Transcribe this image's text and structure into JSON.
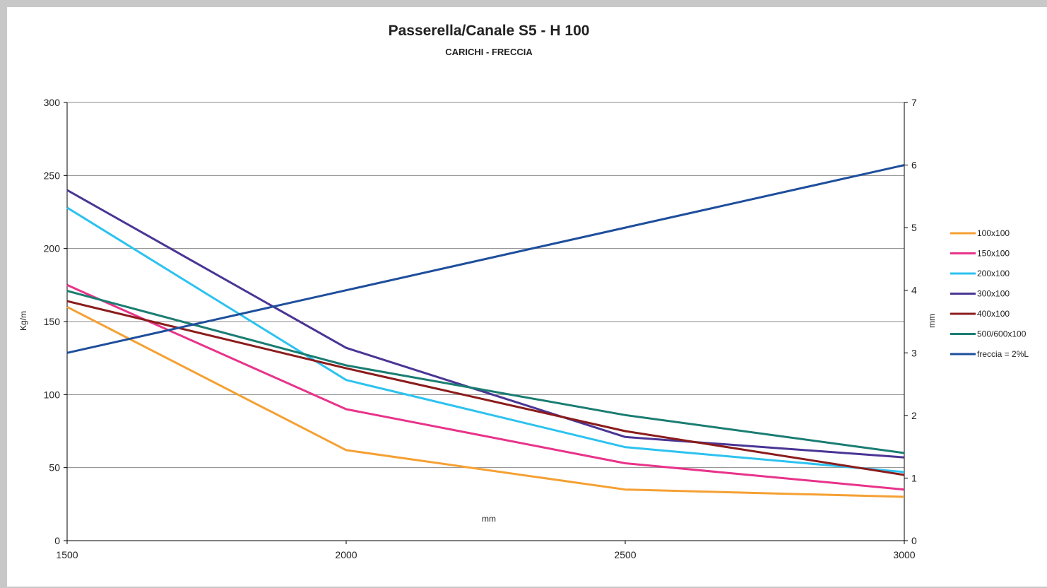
{
  "chart_data": {
    "type": "line",
    "title": "Passerella/Canale S5 - H 100",
    "subtitle": "CARICHI - FRECCIA",
    "xlabel": "mm",
    "ylabel": "Kg/m",
    "y2label": "mm",
    "x": [
      1500,
      2000,
      2500,
      3000
    ],
    "xlim": [
      1500,
      3000
    ],
    "ylim": [
      0,
      300
    ],
    "y2lim": [
      0,
      7
    ],
    "xticks": [
      "1500",
      "2000",
      "2500",
      "3000"
    ],
    "yticks": [
      "0",
      "50",
      "100",
      "150",
      "200",
      "250",
      "300"
    ],
    "y2ticks": [
      "0",
      "1",
      "2",
      "3",
      "4",
      "5",
      "6",
      "7"
    ],
    "grid": true,
    "legend_position": "right",
    "series": [
      {
        "name": "100x100",
        "axis": "left",
        "color": "#f5a033",
        "values": [
          160,
          62,
          35,
          30
        ]
      },
      {
        "name": "150x100",
        "axis": "left",
        "color": "#e8338a",
        "values": [
          175,
          90,
          53,
          35
        ]
      },
      {
        "name": "200x100",
        "axis": "left",
        "color": "#2dc2ef",
        "values": [
          228,
          110,
          64,
          47
        ]
      },
      {
        "name": "300x100",
        "axis": "left",
        "color": "#4a3594",
        "values": [
          240,
          132,
          71,
          57
        ]
      },
      {
        "name": "400x100",
        "axis": "left",
        "color": "#8b1c1c",
        "values": [
          164,
          118,
          75,
          45
        ]
      },
      {
        "name": "500/600x100",
        "axis": "left",
        "color": "#1a7d72",
        "values": [
          171,
          120,
          86,
          60
        ]
      },
      {
        "name": "freccia = 2%L",
        "axis": "right",
        "color": "#1e4e9c",
        "values": [
          3,
          4,
          5,
          6
        ]
      }
    ]
  }
}
